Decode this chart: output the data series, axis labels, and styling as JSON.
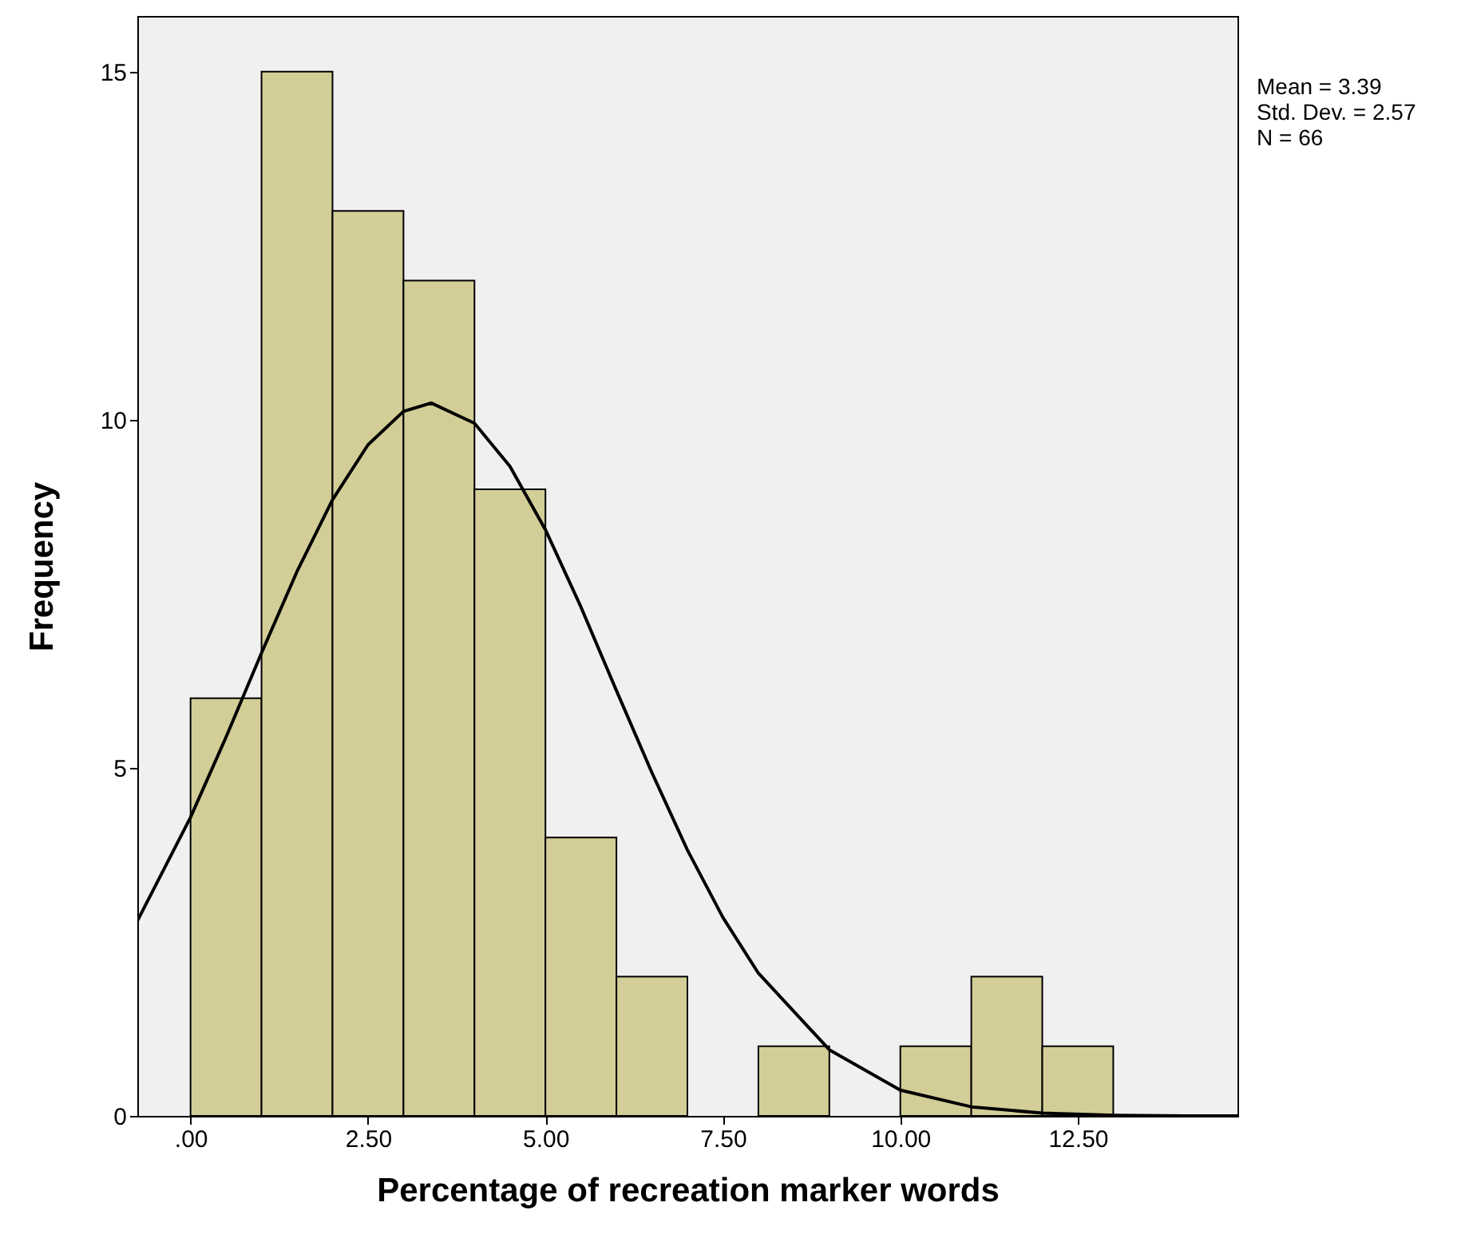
{
  "chart_data": {
    "type": "histogram",
    "xlabel": "Percentage of recreation marker words",
    "ylabel": "Frequency",
    "bins": [
      0,
      1,
      2,
      3,
      4,
      5,
      6,
      7,
      8,
      9,
      10,
      11,
      12,
      13
    ],
    "values": [
      6,
      15,
      13,
      12,
      9,
      4,
      2,
      0,
      1,
      0,
      1,
      2,
      1
    ],
    "color": "#d3ce97",
    "series": [
      {
        "type": "line",
        "color": "#000000",
        "x": [
          -0.75,
          0,
          0.5,
          1,
          1.5,
          2,
          2.5,
          3,
          3.39,
          4,
          4.5,
          5,
          5.5,
          6,
          6.5,
          7,
          7.5,
          8,
          9,
          10,
          11,
          12,
          13,
          14,
          14.75
        ],
        "values": [
          2.8,
          4.29,
          5.44,
          6.65,
          7.82,
          8.85,
          9.64,
          10.12,
          10.24,
          9.95,
          9.33,
          8.42,
          7.31,
          6.11,
          4.93,
          3.82,
          2.85,
          2.05,
          0.95,
          0.37,
          0.13,
          0.04,
          0.01,
          0,
          0
        ]
      }
    ],
    "xlim": [
      -0.75,
      14.75
    ],
    "xticks": [
      {
        "value": 0,
        "label": ".00"
      },
      {
        "value": 2.5,
        "label": "2.50"
      },
      {
        "value": 5,
        "label": "5.00"
      },
      {
        "value": 7.5,
        "label": "7.50"
      },
      {
        "value": 10,
        "label": "10.00"
      },
      {
        "value": 12.5,
        "label": "12.50"
      }
    ],
    "ylim": [
      0,
      15.8
    ],
    "yticks": [
      0,
      5,
      10,
      15
    ],
    "annotations": [
      "Mean = 3.39",
      "Std. Dev. = 2.57",
      "N = 66"
    ]
  }
}
